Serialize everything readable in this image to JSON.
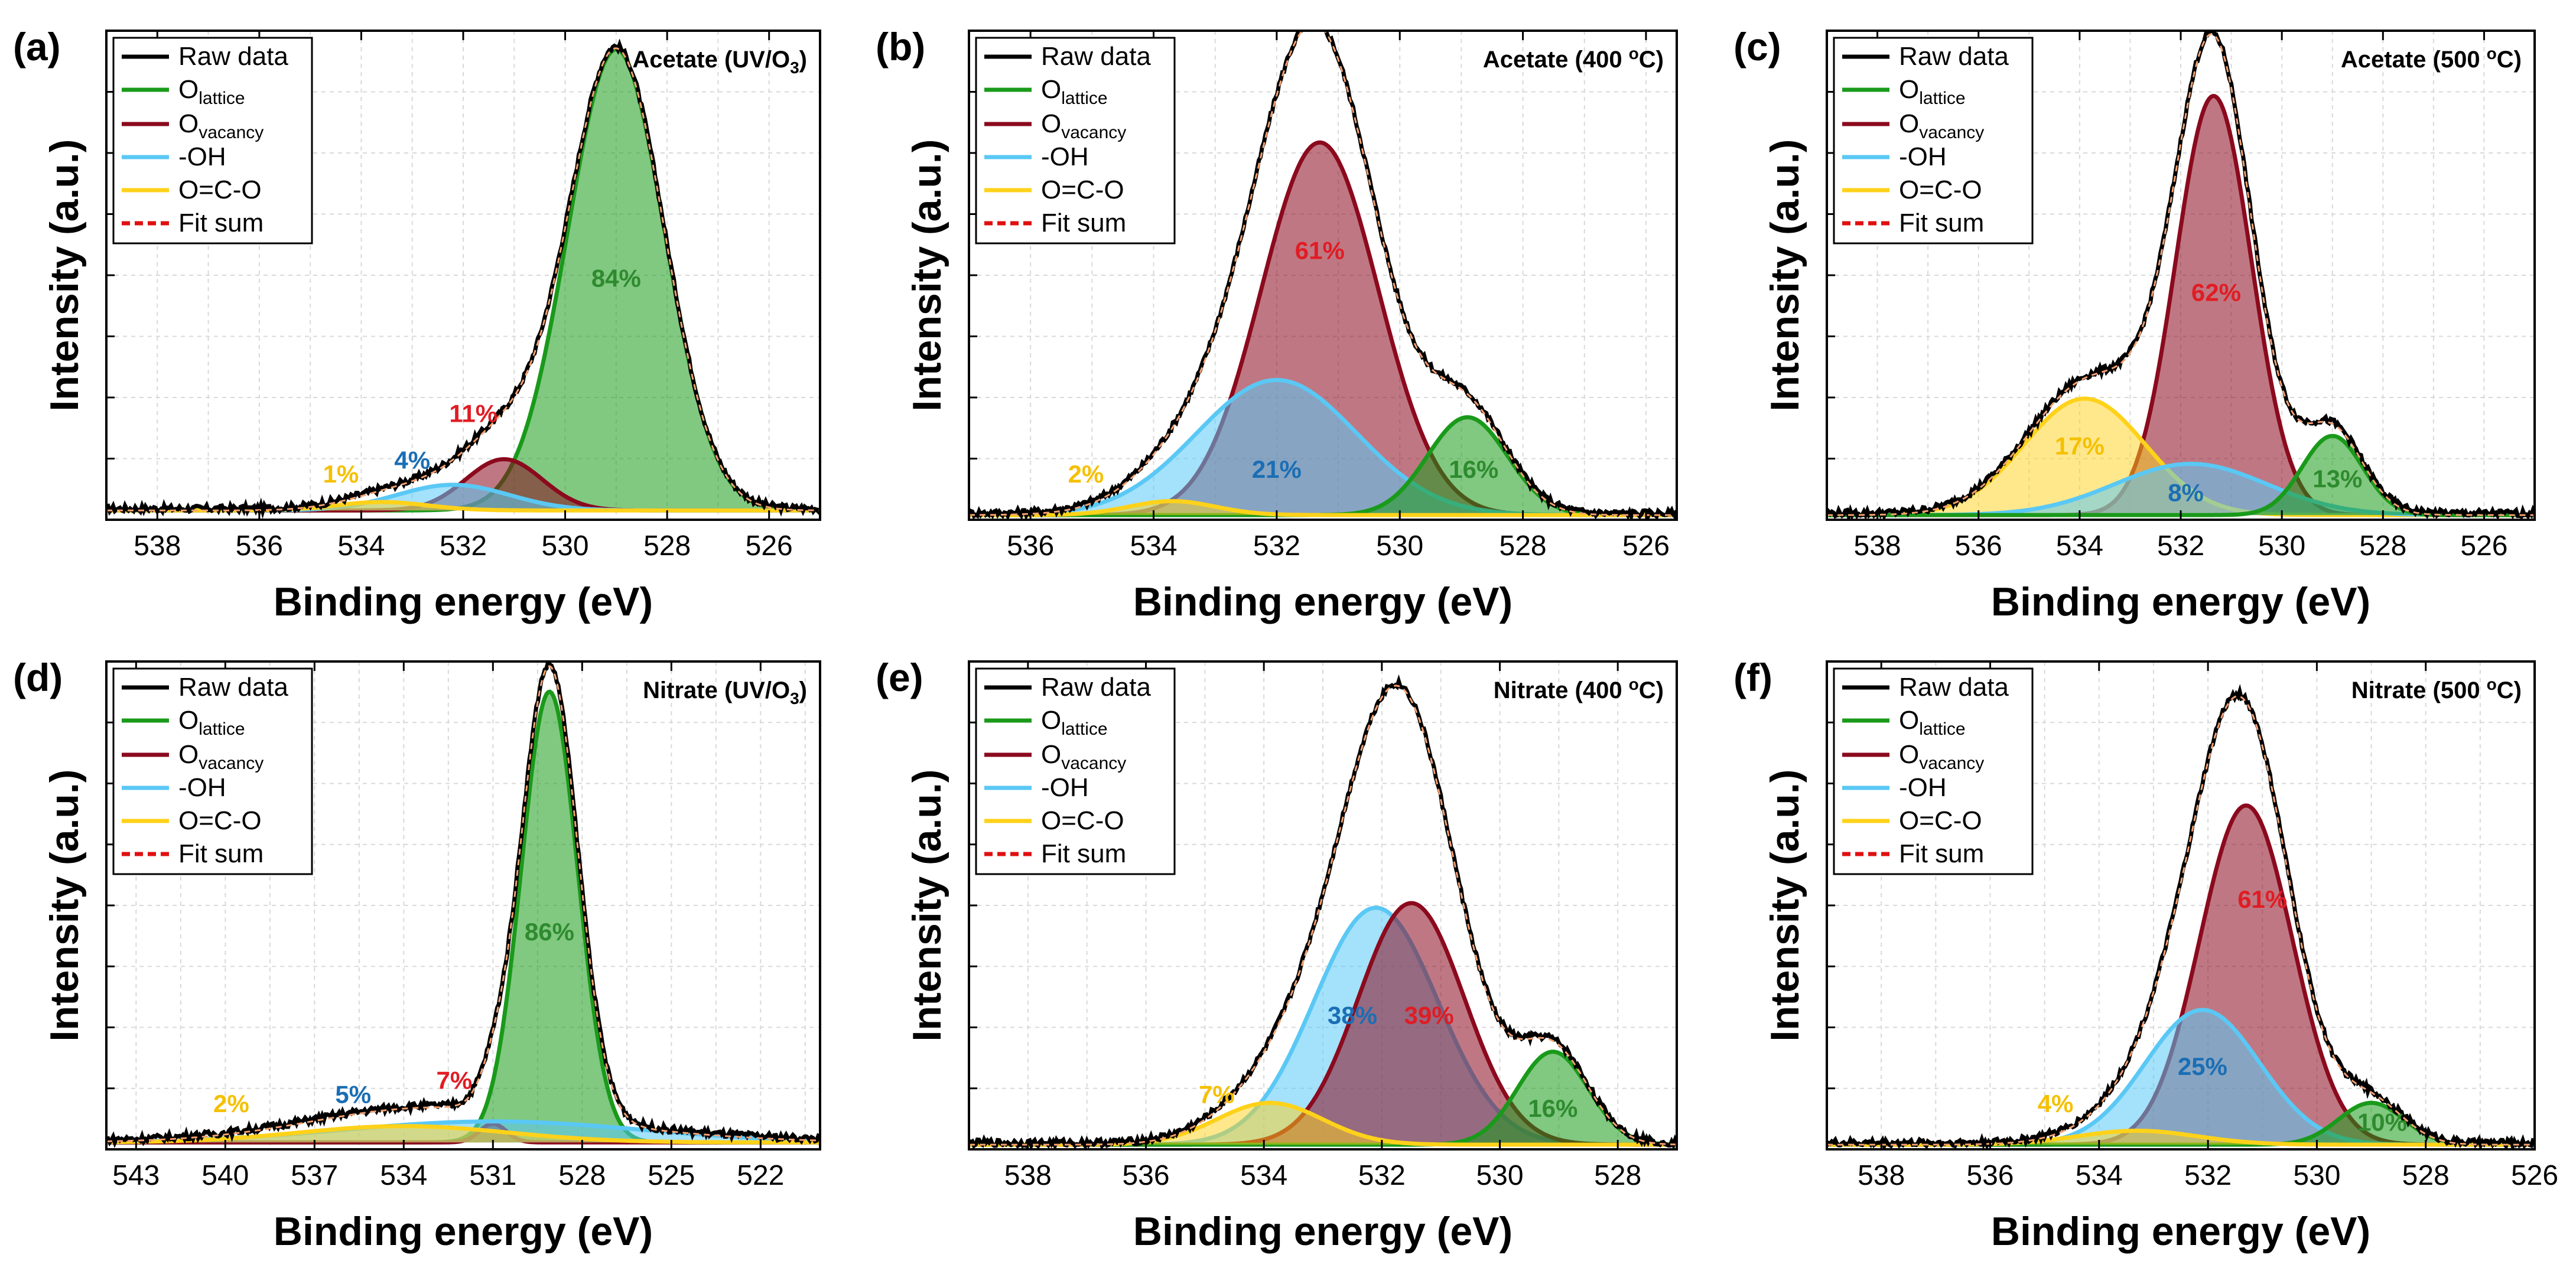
{
  "figure": {
    "legend": {
      "raw": "Raw data",
      "lattice_main": "O",
      "lattice_sub": "lattice",
      "vacancy_main": "O",
      "vacancy_sub": "vacancy",
      "oh": "-OH",
      "oco": "O=C-O",
      "fit": "Fit sum"
    },
    "colors": {
      "raw": "#000000",
      "lattice": "#1a9a1a",
      "vacancy": "#8b0a1e",
      "oh": "#5ac8f5",
      "oco": "#ffd21a",
      "fit": "#e01010",
      "lattice_label": "#2e8b2e",
      "vacancy_label": "#e01c24",
      "oh_label": "#1a6eb4",
      "oco_label": "#f5c000"
    }
  },
  "chart_data": [
    {
      "type": "area",
      "panel_label": "(a)",
      "title_main": "Acetate (UV/O",
      "title_sub": "3",
      "title_end": ")",
      "xlabel": "Binding energy (eV)",
      "ylabel": "Intensity (a.u.)",
      "xlim": [
        539,
        525
      ],
      "xticks": [
        538,
        536,
        534,
        532,
        530,
        528,
        526
      ],
      "tick_labels": [
        "538",
        "536",
        "534",
        "532",
        "530",
        "528",
        "526"
      ],
      "ylim": [
        0,
        1.05
      ],
      "baseline": 0.02,
      "peaks": [
        {
          "component": "lattice",
          "center": 529.0,
          "height": 0.99,
          "sigma": 0.95
        },
        {
          "component": "vacancy",
          "center": 531.2,
          "height": 0.11,
          "sigma": 0.75
        },
        {
          "component": "oh",
          "center": 532.2,
          "height": 0.055,
          "sigma": 1.1
        },
        {
          "component": "oco",
          "center": 533.6,
          "height": 0.018,
          "sigma": 0.9
        }
      ],
      "labels": [
        {
          "component": "lattice",
          "text": "84%",
          "x": 529.0,
          "y": 0.5
        },
        {
          "component": "vacancy",
          "text": "11%",
          "x": 531.8,
          "y": 0.21
        },
        {
          "component": "oh",
          "text": "4%",
          "x": 533.0,
          "y": 0.11
        },
        {
          "component": "oco",
          "text": "1%",
          "x": 534.4,
          "y": 0.08
        }
      ]
    },
    {
      "type": "area",
      "panel_label": "(b)",
      "title_main": "Acetate (400 ",
      "title_sup": "o",
      "title_end": "C)",
      "xlabel": "Binding energy (eV)",
      "ylabel": "Intensity (a.u.)",
      "xlim": [
        537,
        525.5
      ],
      "xticks": [
        536,
        534,
        532,
        530,
        528,
        526
      ],
      "tick_labels": [
        "536",
        "534",
        "532",
        "530",
        "528",
        "526"
      ],
      "ylim": [
        0,
        1.05
      ],
      "baseline": 0.01,
      "peaks": [
        {
          "component": "vacancy",
          "center": 531.3,
          "height": 0.8,
          "sigma": 0.95
        },
        {
          "component": "oh",
          "center": 532.0,
          "height": 0.29,
          "sigma": 1.3
        },
        {
          "component": "lattice",
          "center": 528.9,
          "height": 0.21,
          "sigma": 0.65
        },
        {
          "component": "oco",
          "center": 533.7,
          "height": 0.03,
          "sigma": 0.7
        }
      ],
      "labels": [
        {
          "component": "vacancy",
          "text": "61%",
          "x": 531.3,
          "y": 0.56
        },
        {
          "component": "oh",
          "text": "21%",
          "x": 532.0,
          "y": 0.09
        },
        {
          "component": "lattice",
          "text": "16%",
          "x": 528.8,
          "y": 0.09
        },
        {
          "component": "oco",
          "text": "2%",
          "x": 535.1,
          "y": 0.08
        }
      ]
    },
    {
      "type": "area",
      "panel_label": "(c)",
      "title_main": "Acetate (500 ",
      "title_sup": "o",
      "title_end": "C)",
      "xlabel": "Binding energy (eV)",
      "ylabel": "Intensity (a.u.)",
      "xlim": [
        539,
        525
      ],
      "xticks": [
        538,
        536,
        534,
        532,
        530,
        528,
        526
      ],
      "tick_labels": [
        "538",
        "536",
        "534",
        "532",
        "530",
        "528",
        "526"
      ],
      "ylim": [
        0,
        1.05
      ],
      "baseline": 0.01,
      "peaks": [
        {
          "component": "vacancy",
          "center": 531.35,
          "height": 0.9,
          "sigma": 0.75
        },
        {
          "component": "oco",
          "center": 533.9,
          "height": 0.25,
          "sigma": 1.2
        },
        {
          "component": "oh",
          "center": 531.8,
          "height": 0.11,
          "sigma": 1.5
        },
        {
          "component": "lattice",
          "center": 529.0,
          "height": 0.17,
          "sigma": 0.6
        }
      ],
      "labels": [
        {
          "component": "vacancy",
          "text": "62%",
          "x": 531.3,
          "y": 0.47
        },
        {
          "component": "oco",
          "text": "17%",
          "x": 534.0,
          "y": 0.14
        },
        {
          "component": "oh",
          "text": "8%",
          "x": 531.9,
          "y": 0.04
        },
        {
          "component": "lattice",
          "text": "13%",
          "x": 528.9,
          "y": 0.07
        }
      ]
    },
    {
      "type": "area",
      "panel_label": "(d)",
      "title_main": "Nitrate (UV/O",
      "title_sub": "3",
      "title_end": ")",
      "xlabel": "Binding energy (eV)",
      "ylabel": "Intensity (a.u.)",
      "xlim": [
        544,
        520
      ],
      "xticks": [
        543,
        540,
        537,
        534,
        531,
        528,
        525,
        522
      ],
      "tick_labels": [
        "543",
        "540",
        "537",
        "534",
        "531",
        "528",
        "525",
        "522"
      ],
      "ylim": [
        0,
        1.05
      ],
      "baseline": 0.015,
      "peaks": [
        {
          "component": "lattice",
          "center": 529.1,
          "height": 0.97,
          "sigma": 0.95
        },
        {
          "component": "vacancy",
          "center": 531.0,
          "height": 0.04,
          "sigma": 0.45
        },
        {
          "component": "oh",
          "center": 531.0,
          "height": 0.045,
          "sigma": 5.0
        },
        {
          "component": "oco",
          "center": 534.0,
          "height": 0.035,
          "sigma": 3.5
        }
      ],
      "labels": [
        {
          "component": "lattice",
          "text": "86%",
          "x": 529.1,
          "y": 0.45
        },
        {
          "component": "vacancy",
          "text": "7%",
          "x": 532.3,
          "y": 0.13
        },
        {
          "component": "oh",
          "text": "5%",
          "x": 535.7,
          "y": 0.1
        },
        {
          "component": "oco",
          "text": "2%",
          "x": 539.8,
          "y": 0.08
        }
      ]
    },
    {
      "type": "area",
      "panel_label": "(e)",
      "title_main": "Nitrate (400 ",
      "title_sup": "o",
      "title_end": "C)",
      "xlabel": "Binding energy (eV)",
      "ylabel": "Intensity (a.u.)",
      "xlim": [
        539,
        527
      ],
      "xticks": [
        538,
        536,
        534,
        532,
        530,
        528
      ],
      "tick_labels": [
        "538",
        "536",
        "534",
        "532",
        "530",
        "528"
      ],
      "ylim": [
        0,
        1.05
      ],
      "baseline": 0.01,
      "peaks": [
        {
          "component": "oh",
          "center": 532.1,
          "height": 0.51,
          "sigma": 1.05
        },
        {
          "component": "vacancy",
          "center": 531.5,
          "height": 0.52,
          "sigma": 0.9
        },
        {
          "component": "lattice",
          "center": 529.1,
          "height": 0.2,
          "sigma": 0.6
        },
        {
          "component": "oco",
          "center": 533.9,
          "height": 0.09,
          "sigma": 0.9
        }
      ],
      "labels": [
        {
          "component": "oh",
          "text": "38%",
          "x": 532.5,
          "y": 0.27
        },
        {
          "component": "vacancy",
          "text": "39%",
          "x": 531.2,
          "y": 0.27
        },
        {
          "component": "lattice",
          "text": "16%",
          "x": 529.1,
          "y": 0.07
        },
        {
          "component": "oco",
          "text": "7%",
          "x": 534.8,
          "y": 0.1
        }
      ]
    },
    {
      "type": "area",
      "panel_label": "(f)",
      "title_main": "Nitrate (500 ",
      "title_sup": "o",
      "title_end": "C)",
      "xlabel": "Binding energy (eV)",
      "ylabel": "Intensity (a.u.)",
      "xlim": [
        539,
        526
      ],
      "xticks": [
        538,
        536,
        534,
        532,
        530,
        528,
        526
      ],
      "tick_labels": [
        "538",
        "536",
        "534",
        "532",
        "530",
        "528",
        "526"
      ],
      "ylim": [
        0,
        1.05
      ],
      "baseline": 0.01,
      "peaks": [
        {
          "component": "vacancy",
          "center": 531.3,
          "height": 0.73,
          "sigma": 0.85
        },
        {
          "component": "oh",
          "center": 532.1,
          "height": 0.29,
          "sigma": 1.05
        },
        {
          "component": "lattice",
          "center": 529.0,
          "height": 0.09,
          "sigma": 0.6
        },
        {
          "component": "oco",
          "center": 533.3,
          "height": 0.03,
          "sigma": 1.1
        }
      ],
      "labels": [
        {
          "component": "vacancy",
          "text": "61%",
          "x": 531.0,
          "y": 0.52
        },
        {
          "component": "oh",
          "text": "25%",
          "x": 532.1,
          "y": 0.16
        },
        {
          "component": "lattice",
          "text": "10%",
          "x": 528.8,
          "y": 0.04
        },
        {
          "component": "oco",
          "text": "4%",
          "x": 534.8,
          "y": 0.08
        }
      ]
    }
  ]
}
